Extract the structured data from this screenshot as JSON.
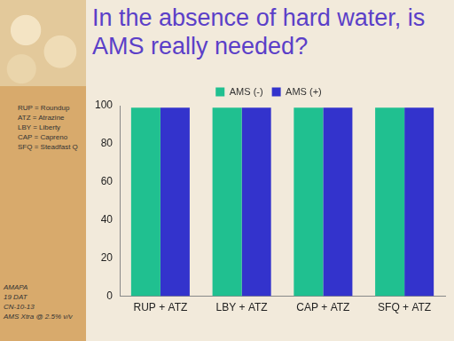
{
  "chart_data": {
    "type": "bar",
    "title": "In the absence of hard water, is AMS really needed?",
    "categories": [
      "RUP + ATZ",
      "LBY + ATZ",
      "CAP + ATZ",
      "SFQ + ATZ"
    ],
    "series": [
      {
        "name": "AMS (-)",
        "color": "#20c090",
        "values": [
          99,
          99,
          99,
          99
        ]
      },
      {
        "name": "AMS (+)",
        "color": "#3333cc",
        "values": [
          99,
          99,
          99,
          99
        ]
      }
    ],
    "ylim": [
      0,
      100
    ],
    "yticks": [
      0,
      20,
      40,
      60,
      80,
      100
    ],
    "grid": false,
    "legend": "top"
  },
  "abbreviations": [
    "RUP = Roundup",
    "ATZ = Atrazine",
    "LBY = Liberty",
    "CAP = Capreno",
    "SFQ = Steadfast Q"
  ],
  "notes": [
    "AMAPA",
    "19 DAT",
    "CN-10-13",
    "AMS Xtra @ 2.5% v/v"
  ]
}
